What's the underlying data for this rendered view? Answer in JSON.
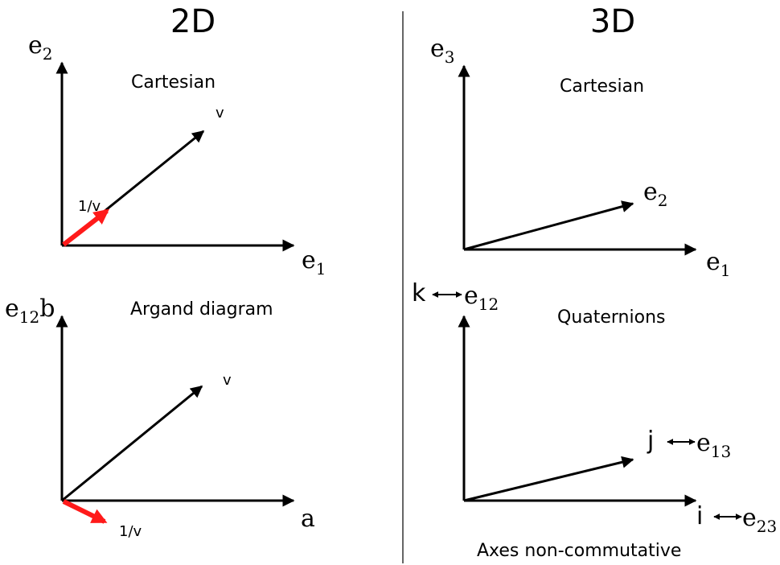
{
  "headings": {
    "left": "2D",
    "right": "3D"
  },
  "panels": {
    "cartesian_2d": {
      "caption": "Cartesian",
      "y_axis": {
        "base": "e",
        "sub": "2"
      },
      "x_axis": {
        "base": "e",
        "sub": "1"
      },
      "vector_label": "v",
      "inverse_label": "1/v"
    },
    "argand": {
      "caption": "Argand diagram",
      "y_axis": {
        "base": "e",
        "sub": "12",
        "suffix": "b"
      },
      "x_axis": {
        "label": "a"
      },
      "vector_label": "v",
      "inverse_label": "1/v"
    },
    "cartesian_3d": {
      "caption": "Cartesian",
      "z_axis": {
        "base": "e",
        "sub": "3"
      },
      "y_axis": {
        "base": "e",
        "sub": "2"
      },
      "x_axis": {
        "base": "e",
        "sub": "1"
      }
    },
    "quaternions": {
      "caption": "Quaternions",
      "footer": "Axes non-commutative",
      "k_axis": {
        "unit": "k",
        "base": "e",
        "sub": "12"
      },
      "j_axis": {
        "unit": "j",
        "base": "e",
        "sub": "13"
      },
      "i_axis": {
        "unit": "i",
        "base": "e",
        "sub": "23"
      }
    }
  },
  "colors": {
    "ink": "#000000",
    "accent": "#ff1a1a",
    "divider": "#333333"
  }
}
